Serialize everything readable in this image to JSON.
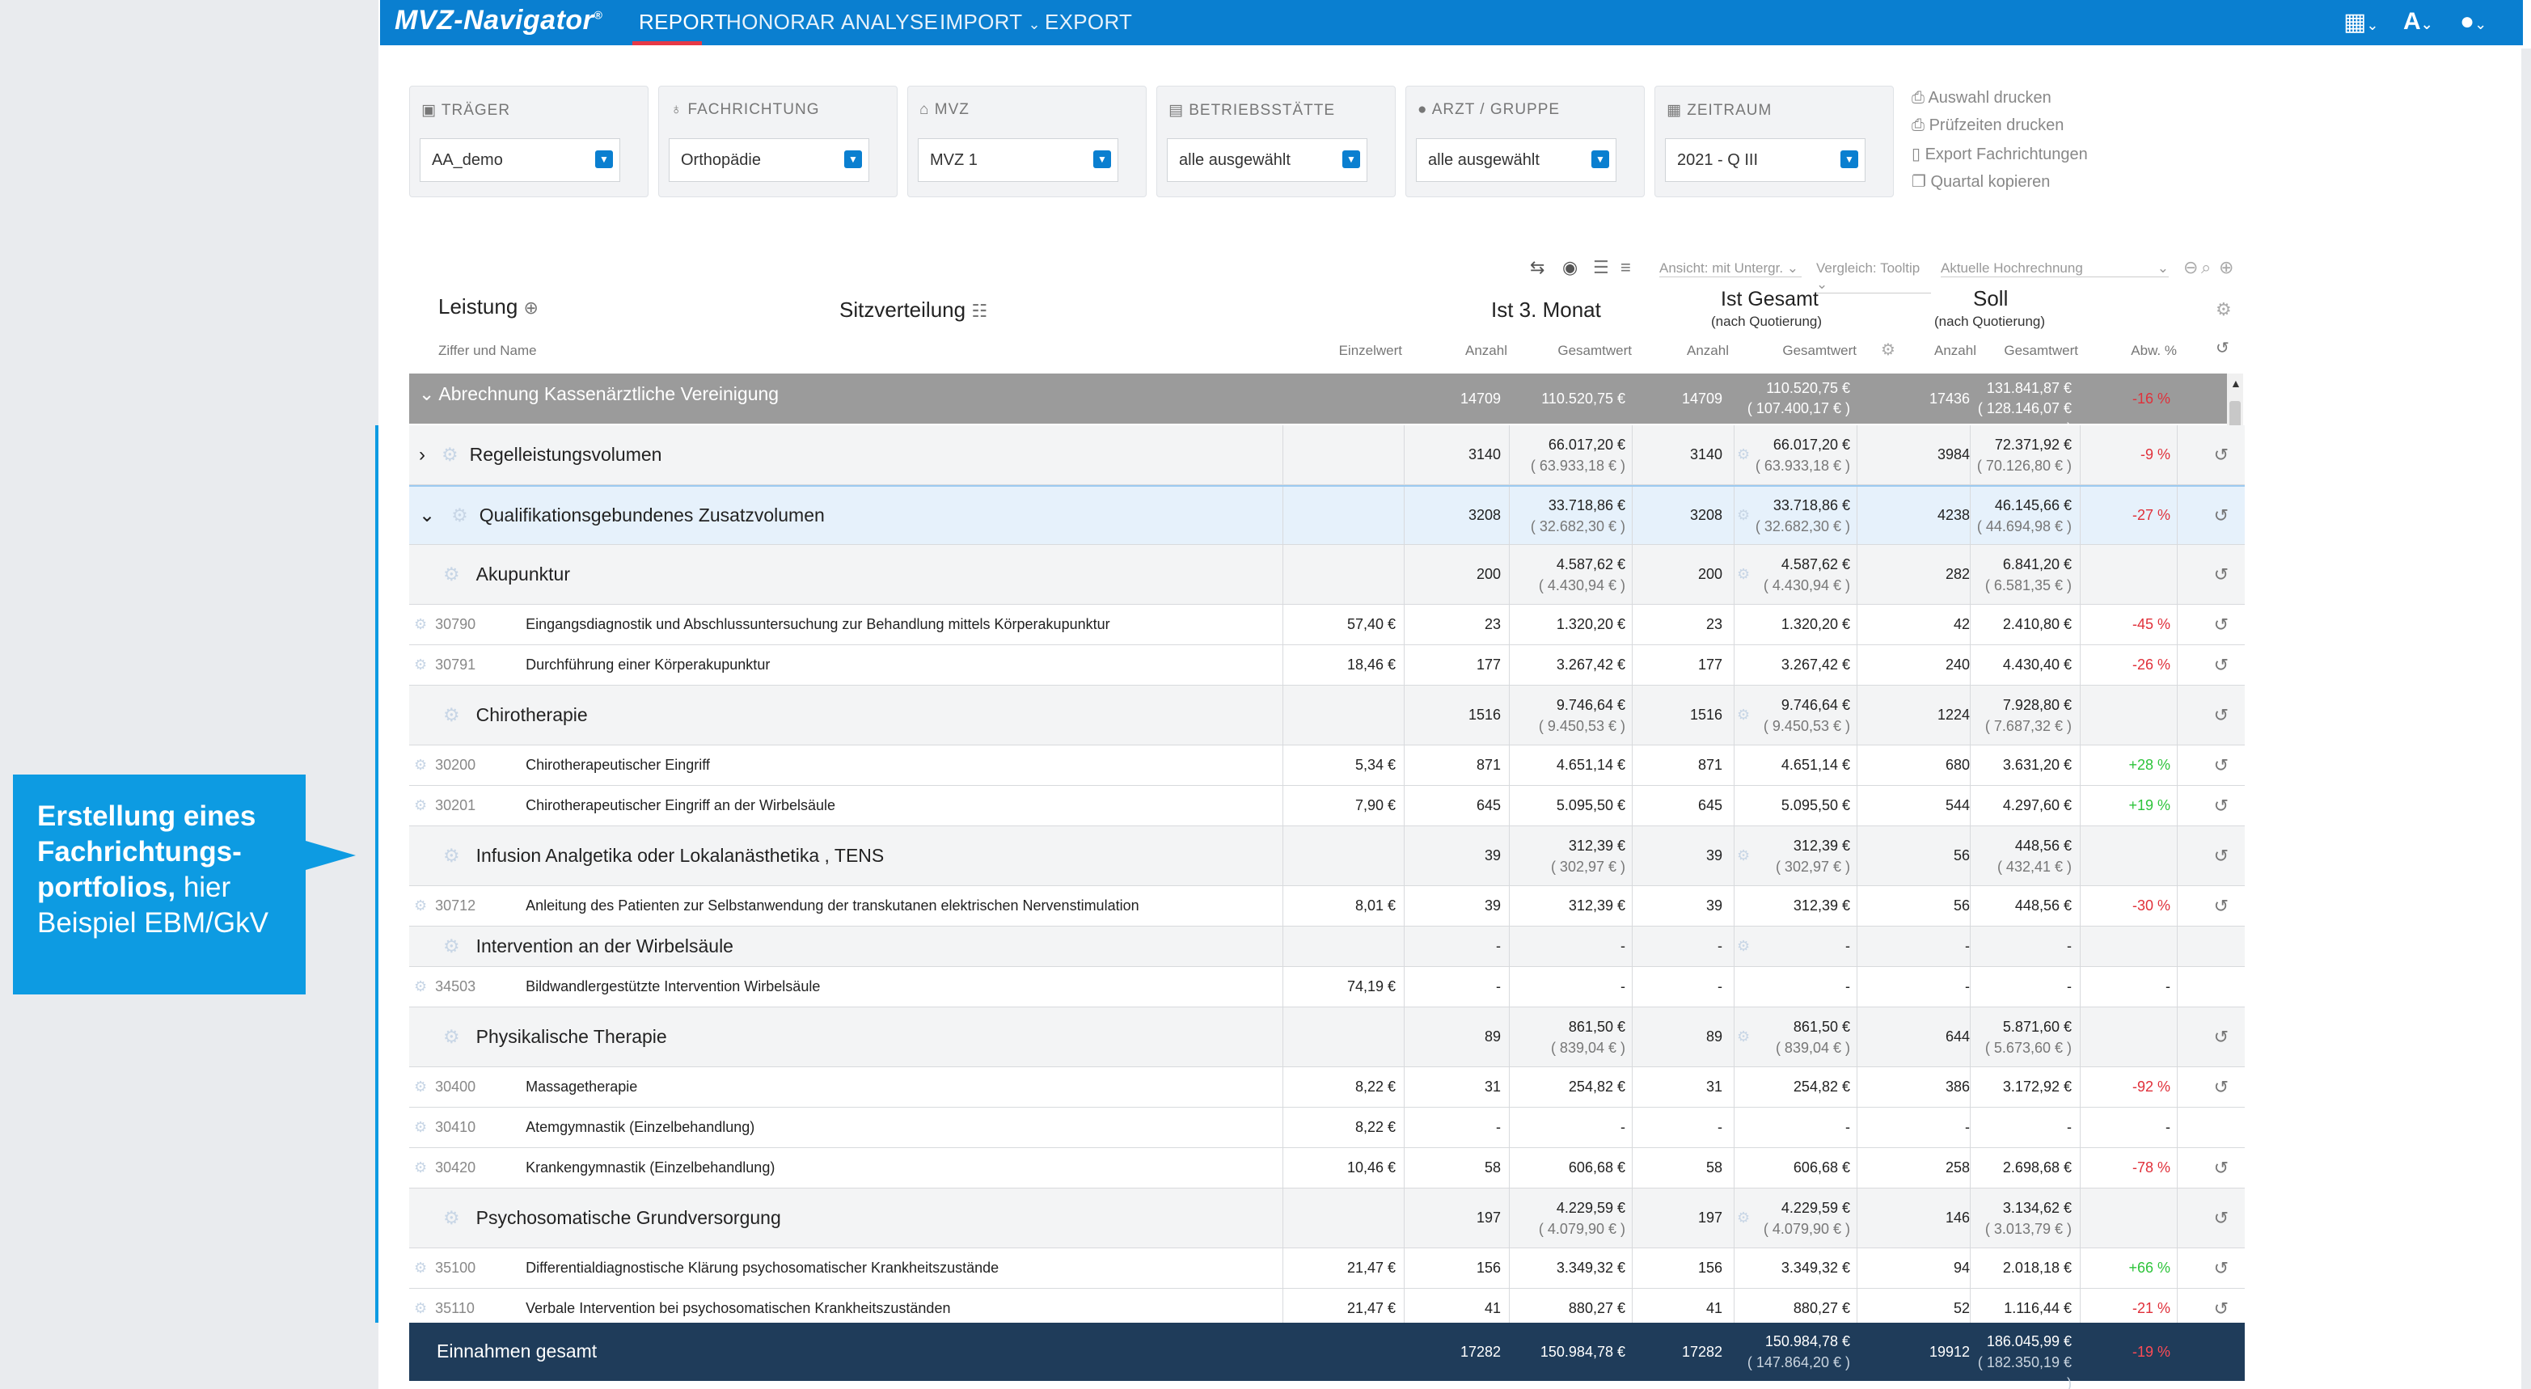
{
  "callout": {
    "bold": "Erstellung eines Fachrichtungs-portfolios,",
    "normal_a": " hier",
    "normal_b": "Beispiel EBM/GkV"
  },
  "app": {
    "brand": "MVZ-Navigator",
    "brand_mark": "®"
  },
  "nav": [
    {
      "label": "REPORT",
      "active": true
    },
    {
      "label": "HONORAR"
    },
    {
      "label": "ANALYSE"
    },
    {
      "label": "IMPORT"
    },
    {
      "label": "EXPORT"
    }
  ],
  "top_icons": [
    "table-icon",
    "font-size-icon",
    "user-icon"
  ],
  "filters": [
    {
      "label": "TRÄGER",
      "value": "AA_demo",
      "icon": "briefcase-icon"
    },
    {
      "label": "FACHRICHTUNG",
      "value": "Orthopädie",
      "icon": "stethoscope-icon"
    },
    {
      "label": "MVZ",
      "value": "MVZ 1",
      "icon": "building-icon"
    },
    {
      "label": "BETRIEBSSTÄTTE",
      "value": "alle ausgewählt",
      "icon": "office-icon"
    },
    {
      "label": "ARZT / GRUPPE",
      "value": "alle ausgewählt",
      "icon": "person-icon"
    },
    {
      "label": "ZEITRAUM",
      "value": "2021 - Q III",
      "icon": "calendar-icon"
    }
  ],
  "actions": [
    "Auswahl drucken",
    "Prüfzeiten drucken",
    "Export Fachrichtungen",
    "Quartal kopieren"
  ],
  "toolbar": {
    "ansicht": "Ansicht: mit Untergr.",
    "vergleich": "Vergleich: Tooltip",
    "hochrechnung": "Aktuelle Hochrechnung"
  },
  "header": {
    "leistung": "Leistung",
    "leistung_sub": "Ziffer und Name",
    "sitz": "Sitzverteilung",
    "ist3": "Ist 3. Monat",
    "istg": "Ist Gesamt",
    "istg_sub": "(nach Quotierung)",
    "soll": "Soll",
    "soll_sub": "(nach Quotierung)",
    "cols": {
      "einzel": "Einzelwert",
      "anzahl1": "Anzahl",
      "gesamt1": "Gesamtwert",
      "anzahl2": "Anzahl",
      "gesamt2": "Gesamtwert",
      "anzahl3": "Anzahl",
      "gesamt3": "Gesamtwert",
      "abw": "Abw. %"
    }
  },
  "summary": {
    "label": "Abrechnung Kassenärztliche Vereinigung",
    "a1": "14709",
    "g1": "110.520,75 €",
    "a2": "14709",
    "g2": "110.520,75 €",
    "g2s": "( 107.400,17 € )",
    "a3": "17436",
    "g3": "131.841,87 €",
    "g3s": "( 128.146,07 € )",
    "abw": "-16 %"
  },
  "rows": [
    {
      "kind": "group",
      "chev": "›",
      "name": "Regelleistungsvolumen",
      "a1": "3140",
      "g1": "66.017,20 €",
      "g1s": "( 63.933,18 € )",
      "a2": "3140",
      "g2": "66.017,20 €",
      "g2s": "( 63.933,18 € )",
      "a3": "3984",
      "g3": "72.371,92 €",
      "g3s": "( 70.126,80 € )",
      "abw": "-9 %"
    },
    {
      "kind": "group",
      "chev": "⌄",
      "name": "Qualifikationsgebundenes Zusatzvolumen",
      "a1": "3208",
      "g1": "33.718,86 €",
      "g1s": "( 32.682,30 € )",
      "a2": "3208",
      "g2": "33.718,86 €",
      "g2s": "( 32.682,30 € )",
      "a3": "4238",
      "g3": "46.145,66 €",
      "g3s": "( 44.694,98 € )",
      "abw": "-27 %",
      "hl": true
    },
    {
      "kind": "sub",
      "name": "Akupunktur",
      "a1": "200",
      "g1": "4.587,62 €",
      "g1s": "( 4.430,94 € )",
      "a2": "200",
      "g2": "4.587,62 €",
      "g2s": "( 4.430,94 € )",
      "a3": "282",
      "g3": "6.841,20 €",
      "g3s": "( 6.581,35 € )",
      "abw": ""
    },
    {
      "kind": "item",
      "code": "30790",
      "name": "Eingangsdiagnostik und Abschlussuntersuchung zur Behandlung mittels Körperakupunktur",
      "e": "57,40 €",
      "a1": "23",
      "g1": "1.320,20 €",
      "a2": "23",
      "g2": "1.320,20 €",
      "a3": "42",
      "g3": "2.410,80 €",
      "abw": "-45 %"
    },
    {
      "kind": "item",
      "code": "30791",
      "name": "Durchführung einer Körperakupunktur",
      "e": "18,46 €",
      "a1": "177",
      "g1": "3.267,42 €",
      "a2": "177",
      "g2": "3.267,42 €",
      "a3": "240",
      "g3": "4.430,40 €",
      "abw": "-26 %"
    },
    {
      "kind": "sub",
      "name": "Chirotherapie",
      "a1": "1516",
      "g1": "9.746,64 €",
      "g1s": "( 9.450,53 € )",
      "a2": "1516",
      "g2": "9.746,64 €",
      "g2s": "( 9.450,53 € )",
      "a3": "1224",
      "g3": "7.928,80 €",
      "g3s": "( 7.687,32 € )",
      "abw": ""
    },
    {
      "kind": "item",
      "code": "30200",
      "name": "Chirotherapeutischer Eingriff",
      "e": "5,34 €",
      "a1": "871",
      "g1": "4.651,14 €",
      "a2": "871",
      "g2": "4.651,14 €",
      "a3": "680",
      "g3": "3.631,20 €",
      "abw": "+28 %"
    },
    {
      "kind": "item",
      "code": "30201",
      "name": "Chirotherapeutischer Eingriff an der Wirbelsäule",
      "e": "7,90 €",
      "a1": "645",
      "g1": "5.095,50 €",
      "a2": "645",
      "g2": "5.095,50 €",
      "a3": "544",
      "g3": "4.297,60 €",
      "abw": "+19 %"
    },
    {
      "kind": "sub",
      "name": "Infusion Analgetika oder Lokalanästhetika , TENS",
      "a1": "39",
      "g1": "312,39 €",
      "g1s": "( 302,97 € )",
      "a2": "39",
      "g2": "312,39 €",
      "g2s": "( 302,97 € )",
      "a3": "56",
      "g3": "448,56 €",
      "g3s": "( 432,41 € )",
      "abw": ""
    },
    {
      "kind": "item",
      "code": "30712",
      "name": "Anleitung des Patienten zur Selbstanwendung der transkutanen elektrischen Nervenstimulation",
      "e": "8,01 €",
      "a1": "39",
      "g1": "312,39 €",
      "a2": "39",
      "g2": "312,39 €",
      "a3": "56",
      "g3": "448,56 €",
      "abw": "-30 %"
    },
    {
      "kind": "sub",
      "name": "Intervention an der Wirbelsäule",
      "a1": "-",
      "g1": "-",
      "a2": "-",
      "g2": "-",
      "a3": "-",
      "g3": "-",
      "abw": "",
      "thin": true
    },
    {
      "kind": "item",
      "code": "34503",
      "name": "Bildwandlergestützte Intervention Wirbelsäule",
      "e": "74,19 €",
      "a1": "-",
      "g1": "-",
      "a2": "-",
      "g2": "-",
      "a3": "-",
      "g3": "-",
      "abw": "-",
      "norestore": true
    },
    {
      "kind": "sub",
      "name": "Physikalische Therapie",
      "a1": "89",
      "g1": "861,50 €",
      "g1s": "( 839,04 € )",
      "a2": "89",
      "g2": "861,50 €",
      "g2s": "( 839,04 € )",
      "a3": "644",
      "g3": "5.871,60 €",
      "g3s": "( 5.673,60 € )",
      "abw": ""
    },
    {
      "kind": "item",
      "code": "30400",
      "name": "Massagetherapie",
      "e": "8,22 €",
      "a1": "31",
      "g1": "254,82 €",
      "a2": "31",
      "g2": "254,82 €",
      "a3": "386",
      "g3": "3.172,92 €",
      "abw": "-92 %"
    },
    {
      "kind": "item",
      "code": "30410",
      "name": "Atemgymnastik (Einzelbehandlung)",
      "e": "8,22 €",
      "a1": "-",
      "g1": "-",
      "a2": "-",
      "g2": "-",
      "a3": "-",
      "g3": "-",
      "abw": "-",
      "norestore": true
    },
    {
      "kind": "item",
      "code": "30420",
      "name": "Krankengymnastik (Einzelbehandlung)",
      "e": "10,46 €",
      "a1": "58",
      "g1": "606,68 €",
      "a2": "58",
      "g2": "606,68 €",
      "a3": "258",
      "g3": "2.698,68 €",
      "abw": "-78 %"
    },
    {
      "kind": "sub",
      "name": "Psychosomatische Grundversorgung",
      "a1": "197",
      "g1": "4.229,59 €",
      "g1s": "( 4.079,90 € )",
      "a2": "197",
      "g2": "4.229,59 €",
      "g2s": "( 4.079,90 € )",
      "a3": "146",
      "g3": "3.134,62 €",
      "g3s": "( 3.013,79 € )",
      "abw": ""
    },
    {
      "kind": "item",
      "code": "35100",
      "name": "Differentialdiagnostische Klärung psychosomatischer Krankheitszustände",
      "e": "21,47 €",
      "a1": "156",
      "g1": "3.349,32 €",
      "a2": "156",
      "g2": "3.349,32 €",
      "a3": "94",
      "g3": "2.018,18 €",
      "abw": "+66 %"
    },
    {
      "kind": "item",
      "code": "35110",
      "name": "Verbale Intervention bei psychosomatischen Krankheitszuständen",
      "e": "21,47 €",
      "a1": "41",
      "g1": "880,27 €",
      "a2": "41",
      "g2": "880,27 €",
      "a3": "52",
      "g3": "1.116,44 €",
      "abw": "-21 %"
    }
  ],
  "total": {
    "label": "Einnahmen gesamt",
    "a1": "17282",
    "g1": "150.984,78 €",
    "a2": "17282",
    "g2": "150.984,78 €",
    "g2s": "( 147.864,20 € )",
    "a3": "19912",
    "g3": "186.045,99 €",
    "g3s": "( 182.350,19 € )",
    "abw": "-19 %"
  },
  "colors": {
    "brand": "#0a7fd0",
    "callout": "#0d9be2",
    "summary_bg": "#9b9b9b",
    "total_bg": "#1f3c5a",
    "highlight": "#e6f1fb",
    "negative": "#e0303a",
    "positive": "#2ec43b"
  }
}
